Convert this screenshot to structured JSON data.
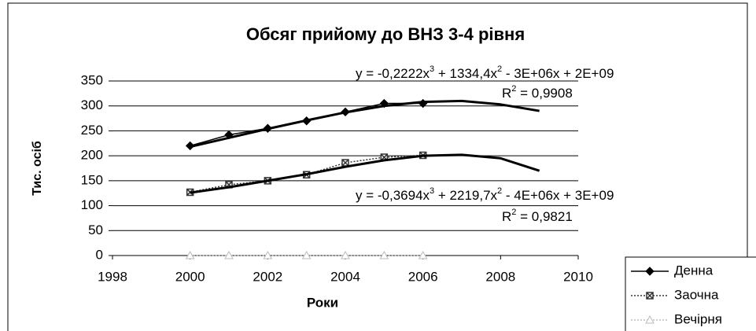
{
  "chart_data": {
    "type": "line",
    "title": "Обсяг прийому до ВНЗ 3-4 рівня",
    "x_label": "Роки",
    "y_label": "Тис. осіб",
    "x": [
      2000,
      2001,
      2002,
      2003,
      2004,
      2005,
      2006
    ],
    "series": [
      {
        "name": "Денна",
        "color": "#000000",
        "marker": "diamond",
        "values": [
          220,
          242,
          255,
          270,
          288,
          305,
          305
        ]
      },
      {
        "name": "Заочна",
        "color": "#333333",
        "marker": "crossed-square",
        "values": [
          127,
          142,
          150,
          162,
          186,
          197,
          201
        ]
      },
      {
        "name": "Вечірня",
        "color": "#bbbbbb",
        "marker": "triangle",
        "values": [
          0,
          0,
          0,
          0,
          0,
          0,
          0
        ]
      }
    ],
    "trendlines": [
      {
        "equation": [
          "y = -0,2222x",
          "3",
          " + 1334,4x",
          "2",
          " - 3E+06x + 2E+09"
        ],
        "r2": [
          "R",
          "2",
          " = 0,9908"
        ],
        "x": [
          2000,
          2001,
          2002,
          2003,
          2004,
          2005,
          2006,
          2007,
          2008,
          2009
        ],
        "values": [
          218,
          236,
          254,
          271,
          287,
          300,
          308,
          310,
          303,
          290
        ]
      },
      {
        "equation": [
          "y = -0,3694x",
          "3",
          " + 2219,7x",
          "2",
          " - 4E+06x + 3E+09"
        ],
        "r2": [
          "R",
          "2",
          " = 0,9821"
        ],
        "x": [
          2000,
          2001,
          2002,
          2003,
          2004,
          2005,
          2006,
          2007,
          2008,
          2009
        ],
        "values": [
          126,
          137,
          150,
          163,
          178,
          191,
          200,
          202,
          195,
          170
        ]
      }
    ],
    "xlim": [
      1998,
      2010
    ],
    "xticks": [
      1998,
      2000,
      2002,
      2004,
      2006,
      2008,
      2010
    ],
    "ylim": [
      0,
      350
    ],
    "yticks": [
      0,
      50,
      100,
      150,
      200,
      250,
      300,
      350
    ],
    "grid": true,
    "legend": "bottom-right"
  }
}
